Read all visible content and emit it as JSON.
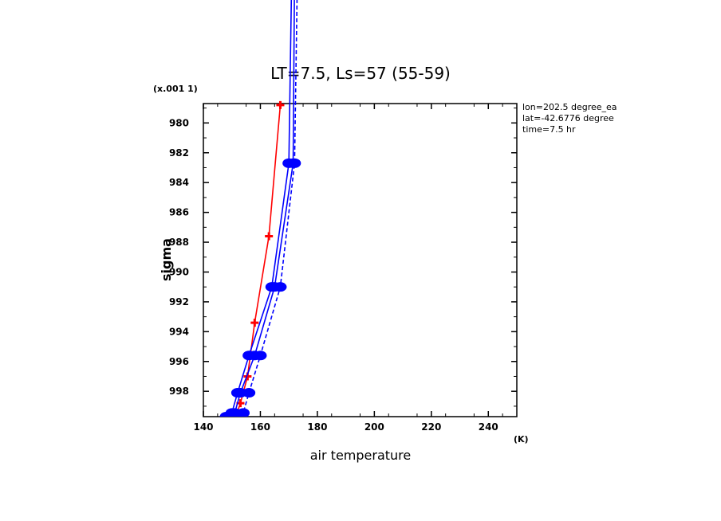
{
  "chart_data": {
    "type": "line",
    "title": "LT=7.5, Ls=57 (55-59)",
    "xlabel": "air temperature",
    "x_unit": "(K)",
    "ylabel": "sigma",
    "y_scale_label": "(x.001 1)",
    "xlim": [
      140,
      250
    ],
    "ylim": [
      999.7,
      978.7
    ],
    "x_ticks": [
      140,
      160,
      180,
      200,
      220,
      240
    ],
    "y_ticks": [
      980,
      982,
      984,
      986,
      988,
      990,
      992,
      994,
      996,
      998
    ],
    "y_tick_labels": [
      "980",
      "982",
      "984",
      "986",
      "988",
      "990",
      "992",
      "994",
      "996",
      "998"
    ],
    "grid": false,
    "info_lines": [
      "lon=202.5 degree_ea",
      "lat=-42.6776 degree",
      "time=7.5 hr"
    ],
    "series": [
      {
        "color": "#ff0000",
        "style": "solid",
        "marker": "cross",
        "points": [
          [
            151.5,
            999.6
          ],
          [
            153,
            998.8
          ],
          [
            155.5,
            997.0
          ],
          [
            158,
            993.4
          ],
          [
            163,
            987.6
          ],
          [
            167,
            978.8
          ]
        ]
      },
      {
        "color": "#0000ff",
        "style": "solid",
        "marker": "circle",
        "points": [
          [
            148,
            999.7
          ],
          [
            150,
            999.45
          ],
          [
            152,
            998.1
          ],
          [
            156,
            995.6
          ],
          [
            164,
            991.0
          ],
          [
            170,
            982.7
          ],
          [
            171,
            970
          ]
        ]
      },
      {
        "color": "#0000ff",
        "style": "dashed",
        "marker": "circle",
        "points": [
          [
            153,
            999.7
          ],
          [
            154,
            999.45
          ],
          [
            156,
            998.1
          ],
          [
            160,
            995.6
          ],
          [
            167,
            991.0
          ],
          [
            172,
            982.7
          ],
          [
            173,
            970
          ]
        ]
      },
      {
        "color": "#0000ff",
        "style": "solid",
        "marker": "circle",
        "points": [
          [
            149,
            999.7
          ],
          [
            151,
            999.45
          ],
          [
            153,
            998.1
          ],
          [
            158,
            995.6
          ],
          [
            165,
            991.0
          ],
          [
            171.5,
            982.7
          ],
          [
            172,
            970
          ]
        ]
      }
    ]
  }
}
